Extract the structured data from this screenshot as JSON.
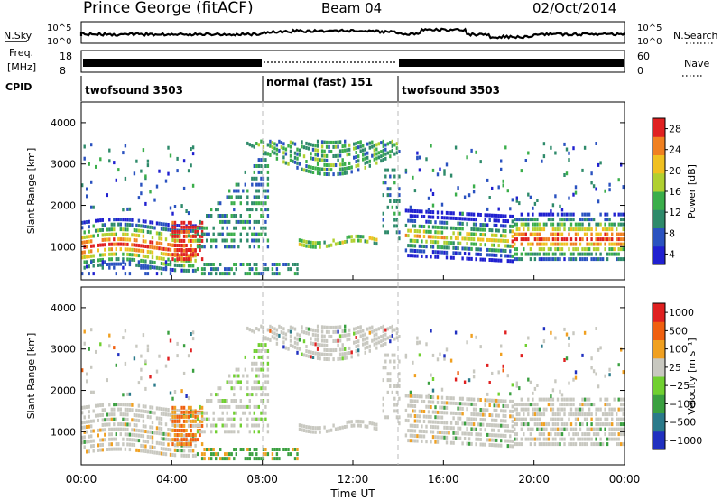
{
  "header": {
    "station": "Prince George (fitACF)",
    "beam": "Beam 04",
    "date": "02/Oct/2014"
  },
  "top_panels": {
    "nsky_label": "N.Sky",
    "nsky_ticks": [
      "10^5",
      "10^0"
    ],
    "nsearch_label": "N.Search",
    "nsearch_ticks": [
      "10^5",
      "10^0"
    ],
    "freq_label_1": "Freq.",
    "freq_label_2": "[MHz]",
    "freq_ticks": [
      "18",
      "8"
    ],
    "nave_label": "Nave",
    "nave_ticks": [
      "60",
      "0"
    ],
    "cpid_label": "CPID",
    "cpid_segments": [
      {
        "label": "twofsound 3503",
        "start_h": 0,
        "end_h": 8
      },
      {
        "label": "normal (fast) 151",
        "start_h": 8,
        "end_h": 14
      },
      {
        "label": "twofsound 3503",
        "start_h": 14,
        "end_h": 24
      }
    ]
  },
  "chart_data": [
    {
      "type": "heatmap",
      "title": "",
      "xlabel": "",
      "ylabel": "Slant Range [km]",
      "xlim": [
        0,
        24
      ],
      "ylim": [
        200,
        4500
      ],
      "yticks": [
        "4000",
        "3000",
        "2000",
        "1000"
      ],
      "ytick_values": [
        4000,
        3000,
        2000,
        1000
      ],
      "colorbar_label": "Power [dB]",
      "colorbar_ticks": [
        "28",
        "24",
        "20",
        "16",
        "12",
        "8",
        "4"
      ],
      "colorbar_values": [
        28,
        24,
        20,
        16,
        12,
        8,
        4
      ],
      "colorbar_range": [
        0,
        30
      ],
      "colors": [
        "#2020d0",
        "#2a52c0",
        "#2e8a6a",
        "#3aae4a",
        "#b0d030",
        "#f0c020",
        "#f08020",
        "#e02020"
      ]
    },
    {
      "type": "heatmap",
      "title": "",
      "xlabel": "Time UT",
      "ylabel": "Slant Range [km]",
      "xlim": [
        0,
        24
      ],
      "ylim": [
        200,
        4500
      ],
      "yticks": [
        "4000",
        "3000",
        "2000",
        "1000"
      ],
      "ytick_values": [
        4000,
        3000,
        2000,
        1000
      ],
      "xticks": [
        "00:00",
        "04:00",
        "08:00",
        "12:00",
        "16:00",
        "20:00",
        "00:00"
      ],
      "xtick_values": [
        0,
        4,
        8,
        12,
        16,
        20,
        24
      ],
      "colorbar_label": "Velocity [m s⁻¹]",
      "colorbar_ticks": [
        "1000",
        "500",
        "100",
        "25",
        "−25",
        "−100",
        "−500",
        "−1000"
      ],
      "colors": [
        "#2030c0",
        "#2a7a8a",
        "#3aa040",
        "#70d030",
        "#c8c8c0",
        "#f0a020",
        "#f06010",
        "#e02020"
      ],
      "ground_scatter_color": "#c8c8c0"
    }
  ]
}
